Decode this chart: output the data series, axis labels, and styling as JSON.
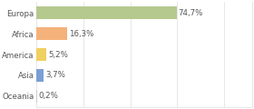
{
  "categories": [
    "Europa",
    "Africa",
    "America",
    "Asia",
    "Oceania"
  ],
  "values": [
    74.7,
    16.3,
    5.2,
    3.7,
    0.2
  ],
  "labels": [
    "74,7%",
    "16,3%",
    "5,2%",
    "3,7%",
    "0,2%"
  ],
  "bar_colors": [
    "#b5c98e",
    "#f4b27a",
    "#f0d060",
    "#7b9fd4",
    "#cccccc"
  ],
  "background_color": "#ffffff",
  "xlim": [
    0,
    115
  ],
  "label_fontsize": 6.2,
  "tick_fontsize": 6.2,
  "grid_color": "#dddddd",
  "grid_positions": [
    0,
    25,
    50,
    75,
    100
  ]
}
